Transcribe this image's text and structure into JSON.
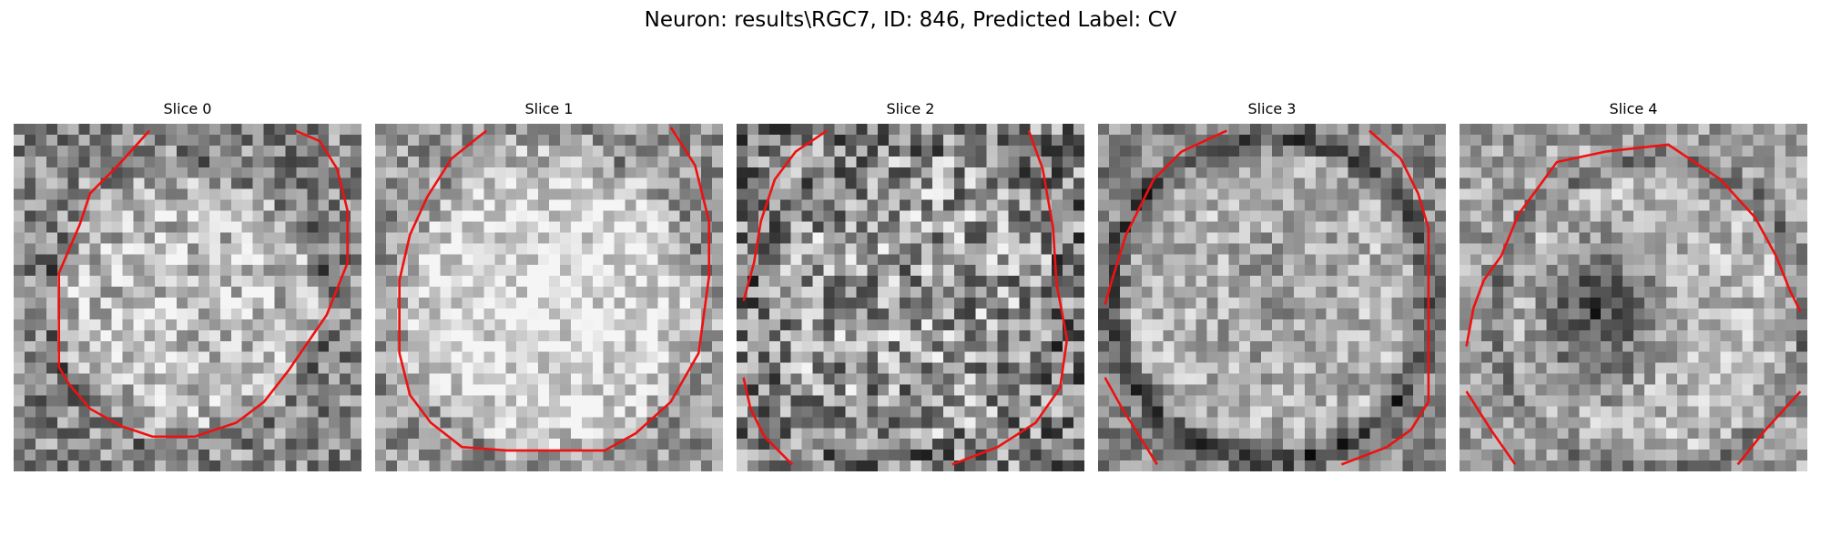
{
  "figure": {
    "title": "Neuron: results\\RGC7, ID: 846, Predicted Label: CV"
  },
  "colors": {
    "contour": "#ee1111",
    "background": "#ffffff"
  },
  "slices": [
    {
      "label": "Slice 0"
    },
    {
      "label": "Slice 1"
    },
    {
      "label": "Slice 2"
    },
    {
      "label": "Slice 3"
    },
    {
      "label": "Slice 4"
    }
  ]
}
